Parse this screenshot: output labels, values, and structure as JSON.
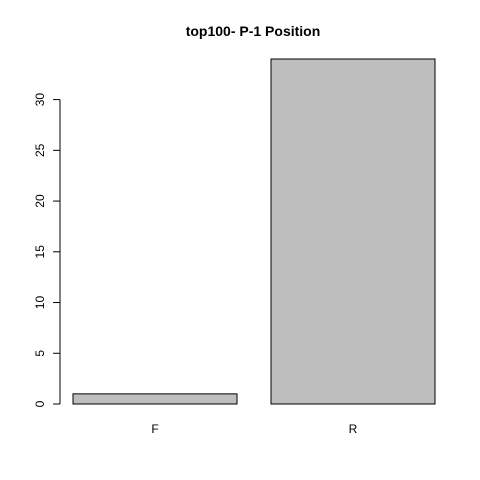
{
  "chart_data": {
    "type": "bar",
    "title": "top100- P-1 Position",
    "categories": [
      "F",
      "R"
    ],
    "values": [
      1,
      34
    ],
    "xlabel": "",
    "ylabel": "",
    "ylim": [
      0,
      34
    ],
    "yticks": [
      0,
      5,
      10,
      15,
      20,
      25,
      30
    ],
    "bar_color": "#bebebe",
    "grid": false
  }
}
